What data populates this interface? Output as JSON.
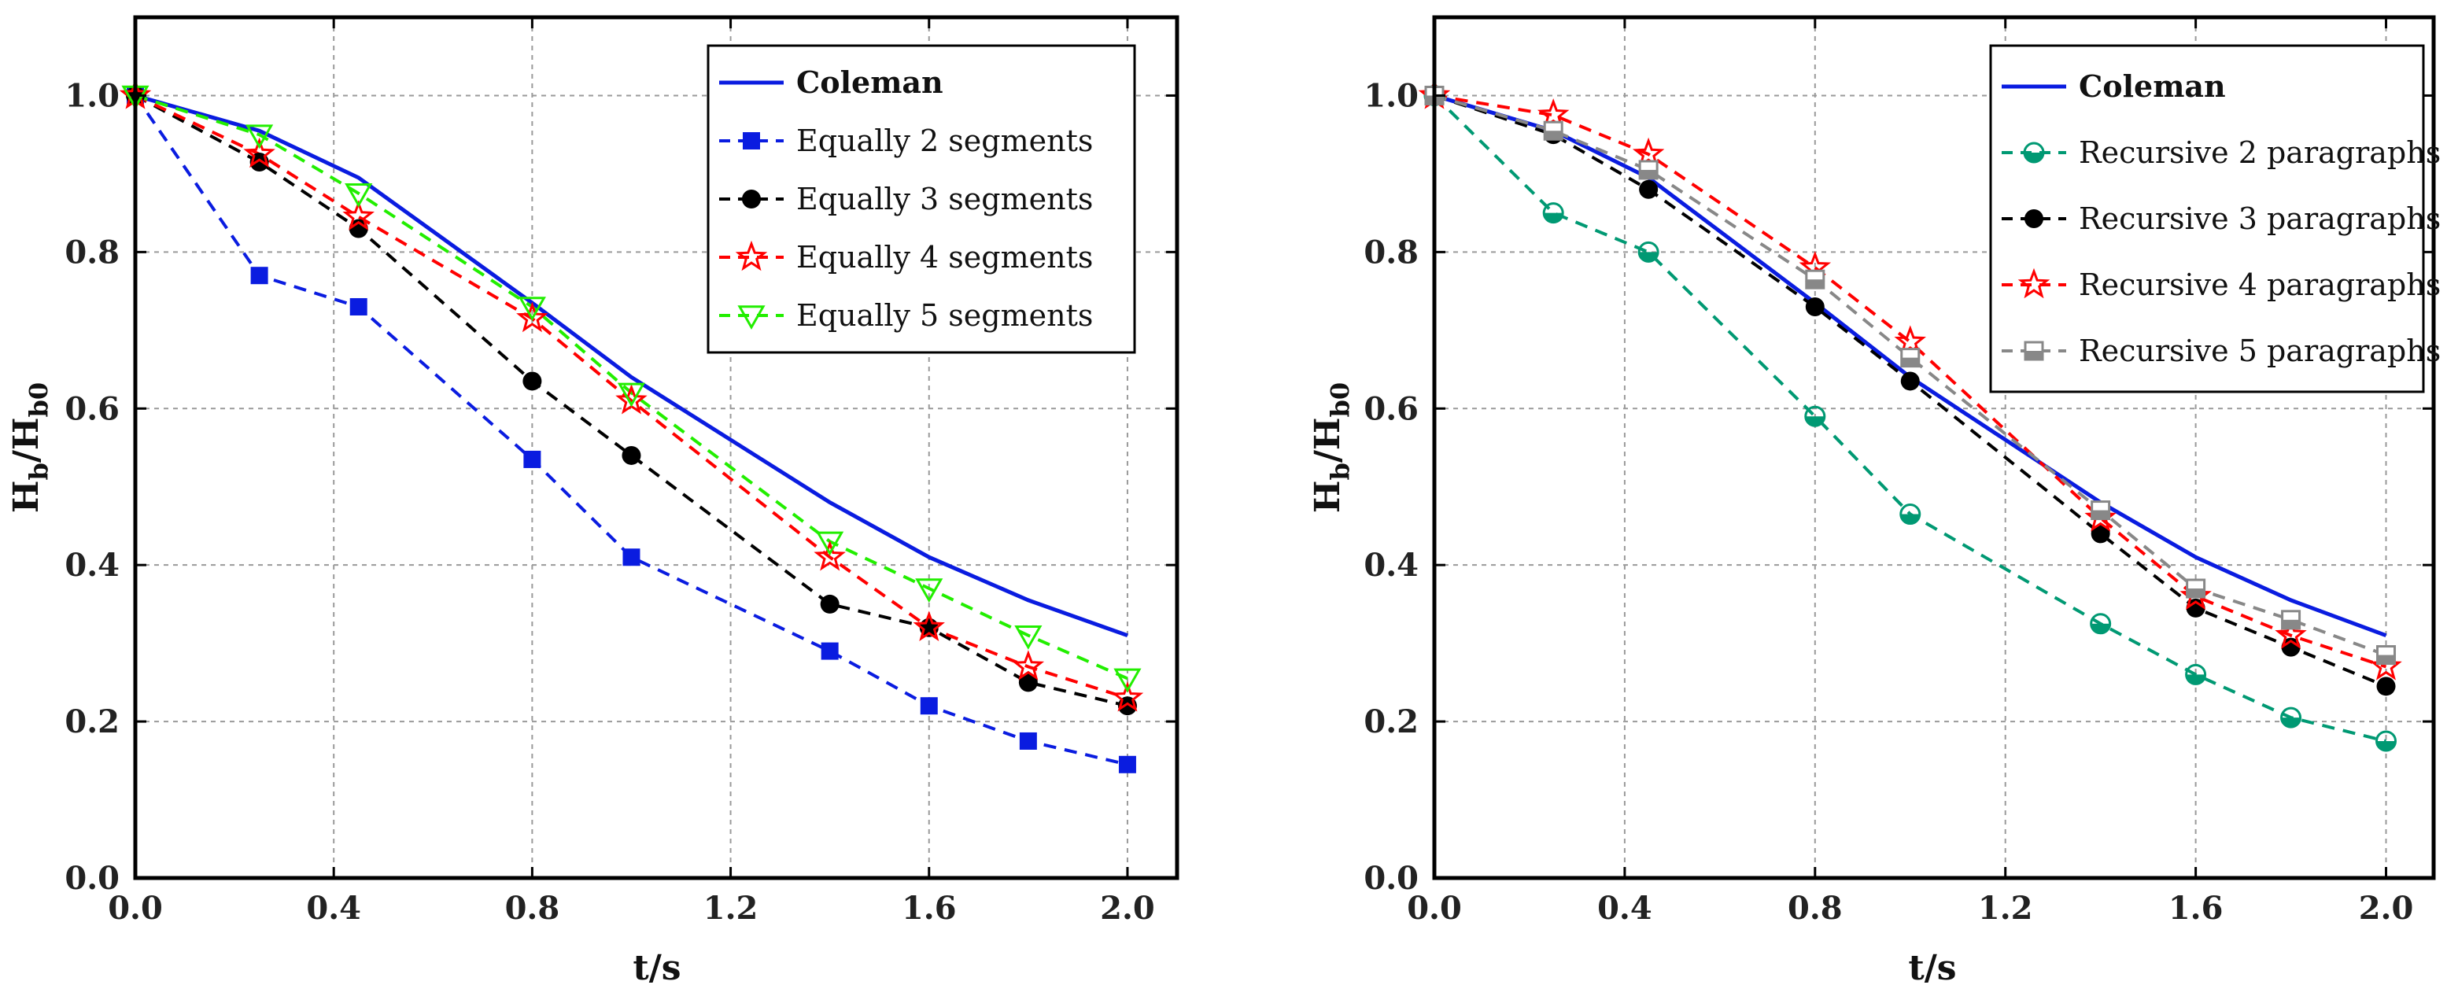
{
  "chart_data": [
    {
      "type": "line",
      "panel": "left",
      "title": "",
      "xlabel": "t/s",
      "ylabel_main": "H",
      "ylabel_sub1": "b",
      "ylabel_mid": "/H",
      "ylabel_sub2": "b0",
      "xlim": [
        0.0,
        2.1
      ],
      "ylim": [
        0.0,
        1.1
      ],
      "xticks": [
        0.0,
        0.4,
        0.8,
        1.2,
        1.6,
        2.0
      ],
      "xtick_labels": [
        "0.0",
        "0.4",
        "0.8",
        "1.2",
        "1.6",
        "2.0"
      ],
      "yticks": [
        0.0,
        0.2,
        0.4,
        0.6,
        0.8,
        1.0
      ],
      "ytick_labels": [
        "0.0",
        "0.2",
        "0.4",
        "0.6",
        "0.8",
        "1.0"
      ],
      "grid": true,
      "legend_position": "top-right",
      "series": [
        {
          "name": "Coleman",
          "color": "#0a1ce0",
          "dash": "solid",
          "marker": "none",
          "bold": true,
          "x": [
            0,
            0.25,
            0.45,
            0.8,
            1.0,
            1.4,
            1.6,
            1.8,
            2.0
          ],
          "y": [
            1.0,
            0.955,
            0.895,
            0.735,
            0.64,
            0.48,
            0.41,
            0.355,
            0.31
          ]
        },
        {
          "name": "Equally  2 segments",
          "color": "#0a1ce0",
          "dash": "dashed",
          "marker": "square",
          "x": [
            0,
            0.25,
            0.45,
            0.8,
            1.0,
            1.4,
            1.6,
            1.8,
            2.0
          ],
          "y": [
            1.0,
            0.77,
            0.73,
            0.535,
            0.41,
            0.29,
            0.22,
            0.175,
            0.145
          ]
        },
        {
          "name": "Equally  3 segments",
          "color": "#000000",
          "dash": "dashed",
          "marker": "circle",
          "x": [
            0,
            0.25,
            0.45,
            0.8,
            1.0,
            1.4,
            1.6,
            1.8,
            2.0
          ],
          "y": [
            1.0,
            0.915,
            0.83,
            0.635,
            0.54,
            0.35,
            0.32,
            0.25,
            0.22
          ]
        },
        {
          "name": "Equally  4 segments",
          "color": "#ff0000",
          "dash": "dashed",
          "marker": "star-open",
          "x": [
            0,
            0.25,
            0.45,
            0.8,
            1.0,
            1.4,
            1.6,
            1.8,
            2.0
          ],
          "y": [
            1.0,
            0.925,
            0.845,
            0.715,
            0.61,
            0.41,
            0.32,
            0.27,
            0.23
          ]
        },
        {
          "name": "Equally  5 segments",
          "color": "#22ee00",
          "dash": "dashed",
          "marker": "triangle-down-open",
          "x": [
            0,
            0.25,
            0.45,
            0.8,
            1.0,
            1.4,
            1.6,
            1.8,
            2.0
          ],
          "y": [
            1.0,
            0.95,
            0.875,
            0.73,
            0.62,
            0.43,
            0.37,
            0.31,
            0.255
          ]
        }
      ]
    },
    {
      "type": "line",
      "panel": "right",
      "title": "",
      "xlabel": "t/s",
      "ylabel_main": "H",
      "ylabel_sub1": "b",
      "ylabel_mid": "/H",
      "ylabel_sub2": "b0",
      "xlim": [
        0.0,
        2.1
      ],
      "ylim": [
        0.0,
        1.1
      ],
      "xticks": [
        0.0,
        0.4,
        0.8,
        1.2,
        1.6,
        2.0
      ],
      "xtick_labels": [
        "0.0",
        "0.4",
        "0.8",
        "1.2",
        "1.6",
        "2.0"
      ],
      "yticks": [
        0.0,
        0.2,
        0.4,
        0.6,
        0.8,
        1.0
      ],
      "ytick_labels": [
        "0.0",
        "0.2",
        "0.4",
        "0.6",
        "0.8",
        "1.0"
      ],
      "grid": true,
      "legend_position": "top-right",
      "series": [
        {
          "name": "Coleman",
          "color": "#0a1ce0",
          "dash": "solid",
          "marker": "none",
          "bold": true,
          "x": [
            0,
            0.25,
            0.45,
            0.8,
            1.0,
            1.4,
            1.6,
            1.8,
            2.0
          ],
          "y": [
            1.0,
            0.955,
            0.895,
            0.735,
            0.64,
            0.48,
            0.41,
            0.355,
            0.31
          ]
        },
        {
          "name": "Recursive 2 paragraphs",
          "color": "#009973",
          "dash": "dashed",
          "marker": "half-circle",
          "x": [
            0,
            0.25,
            0.45,
            0.8,
            1.0,
            1.4,
            1.6,
            1.8,
            2.0
          ],
          "y": [
            1.0,
            0.85,
            0.8,
            0.59,
            0.465,
            0.325,
            0.26,
            0.205,
            0.175
          ]
        },
        {
          "name": "Recursive 3 paragraphs",
          "color": "#000000",
          "dash": "dashed",
          "marker": "circle",
          "x": [
            0,
            0.25,
            0.45,
            0.8,
            1.0,
            1.4,
            1.6,
            1.8,
            2.0
          ],
          "y": [
            1.0,
            0.95,
            0.88,
            0.73,
            0.635,
            0.44,
            0.345,
            0.295,
            0.245
          ]
        },
        {
          "name": "Recursive 4 paragraphs",
          "color": "#ff0000",
          "dash": "dashed",
          "marker": "star-open",
          "x": [
            0,
            0.25,
            0.45,
            0.8,
            1.0,
            1.4,
            1.6,
            1.8,
            2.0
          ],
          "y": [
            1.0,
            0.975,
            0.925,
            0.78,
            0.685,
            0.46,
            0.36,
            0.31,
            0.27
          ]
        },
        {
          "name": "Recursive 5 paragraphs",
          "color": "#888888",
          "dash": "dashed",
          "marker": "square-half",
          "x": [
            0,
            0.25,
            0.45,
            0.8,
            1.0,
            1.4,
            1.6,
            1.8,
            2.0
          ],
          "y": [
            1.0,
            0.955,
            0.905,
            0.765,
            0.665,
            0.47,
            0.37,
            0.33,
            0.285
          ]
        }
      ]
    }
  ]
}
